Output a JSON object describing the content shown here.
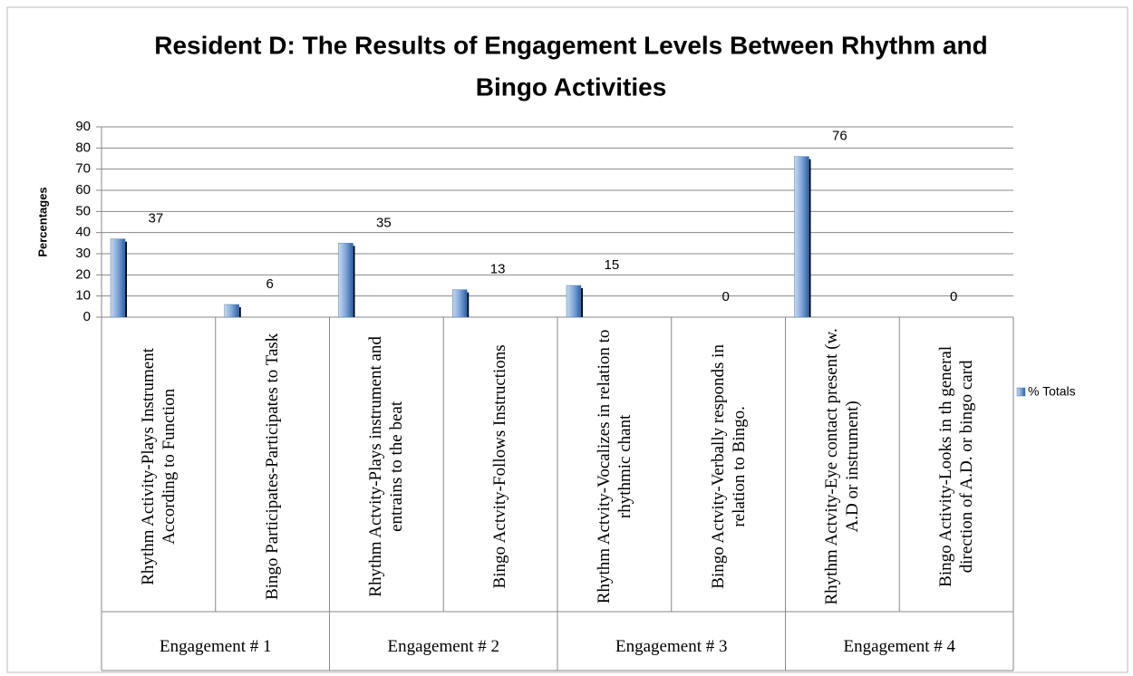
{
  "chart_data": {
    "type": "bar",
    "title": "Resident D: The Results of Engagement Levels Between Rhythm and Bingo Activities",
    "y_label": "Percentages",
    "categories": [
      "Rhythm Activity-Plays Instrument According to Function",
      "Bingo Participates-Participates to Task",
      "Rhythm Actvity-Plays instrument and entrains to the beat",
      "Bingo Actvity-Follows Instructions",
      "Rhythm Actvity-Vocalizes in relation to rhythmic chant",
      "Bingo Actvity-Verbally responds in relation to Bingo.",
      "Rhythm Actvity-Eye contact present (w. A.D or instrument)",
      "Bingo Activity-Looks in th general direction of A.D. or bingo card"
    ],
    "groups": [
      "Engagement # 1",
      "Engagement # 2",
      "Engagement # 3",
      "Engagement # 4"
    ],
    "series": [
      {
        "name": "% Totals",
        "color": "#4f81bd",
        "values": [
          37,
          6,
          35,
          13,
          15,
          0,
          76,
          0
        ]
      }
    ],
    "ylim": [
      0,
      90
    ],
    "yticks": [
      0,
      10,
      20,
      30,
      40,
      50,
      60,
      70,
      80,
      90
    ],
    "grid": true,
    "legend": "right"
  }
}
